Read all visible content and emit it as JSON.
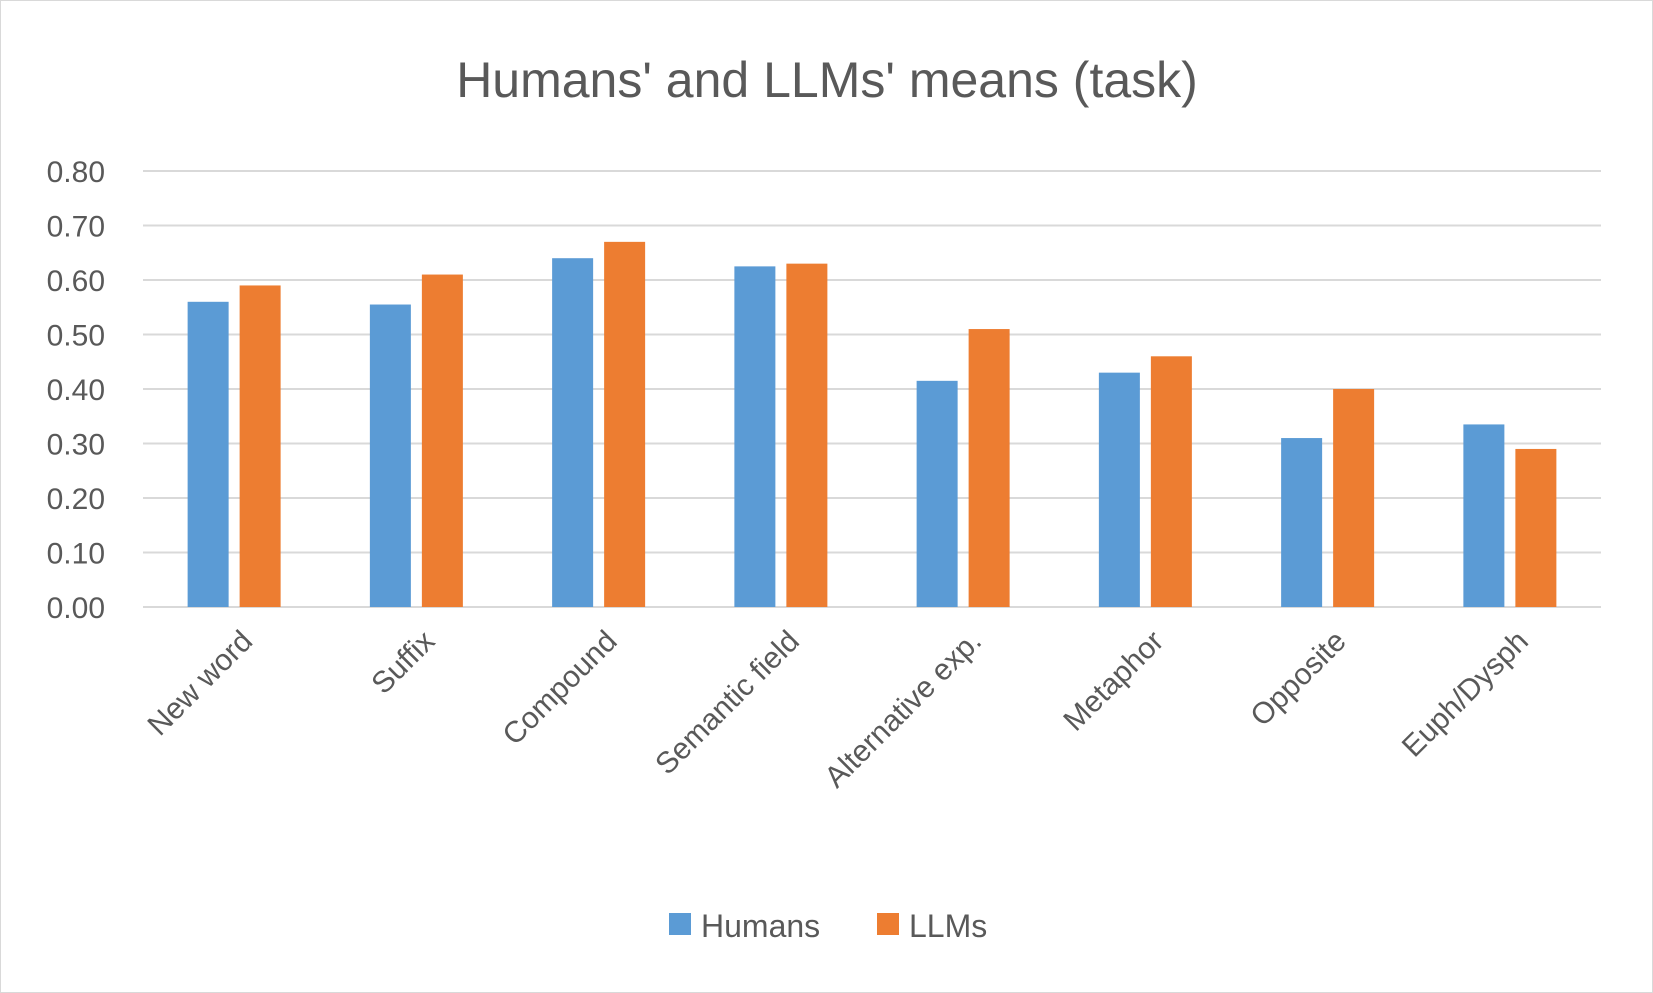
{
  "chart_data": {
    "type": "bar",
    "title": "Humans' and LLMs' means (task)",
    "xlabel": "",
    "ylabel": "",
    "categories": [
      "New word",
      "Suffix",
      "Compound",
      "Semantic field",
      "Alternative exp.",
      "Metaphor",
      "Opposite",
      "Euph/Dysph"
    ],
    "series": [
      {
        "name": "Humans",
        "color": "#5b9bd5",
        "values": [
          0.56,
          0.555,
          0.64,
          0.625,
          0.415,
          0.43,
          0.31,
          0.335
        ]
      },
      {
        "name": "LLMs",
        "color": "#ed7d31",
        "values": [
          0.59,
          0.61,
          0.67,
          0.63,
          0.51,
          0.46,
          0.4,
          0.29
        ]
      }
    ],
    "ylim": [
      0,
      0.8
    ],
    "yticks": [
      "0.00",
      "0.10",
      "0.20",
      "0.30",
      "0.40",
      "0.50",
      "0.60",
      "0.70",
      "0.80"
    ],
    "grid": true,
    "legend": "bottom"
  }
}
